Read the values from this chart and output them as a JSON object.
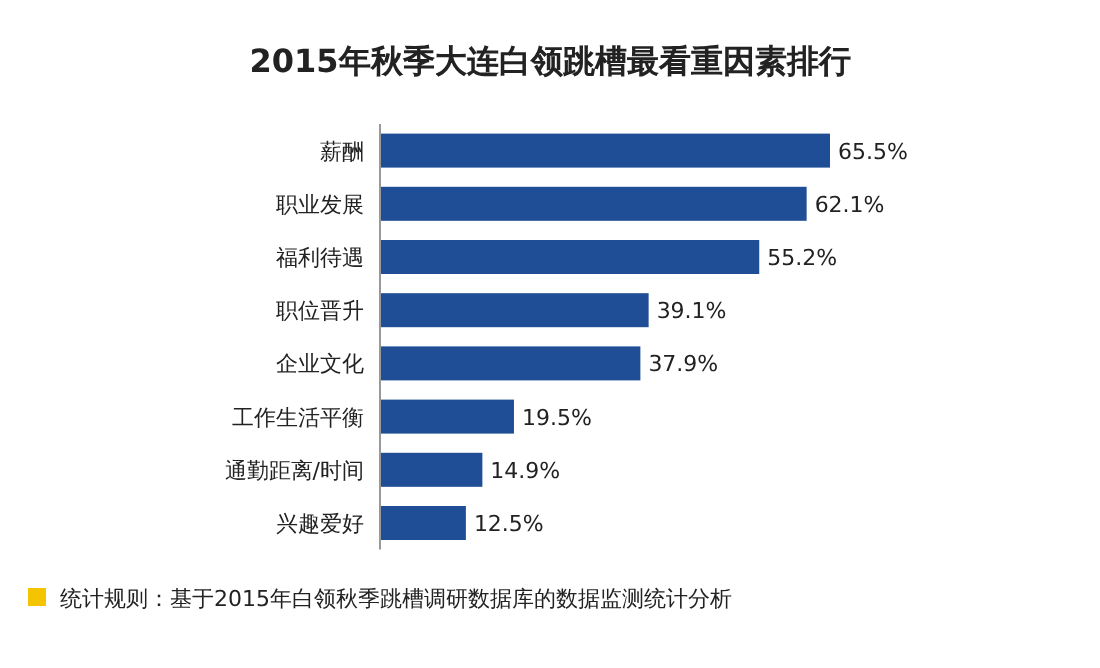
{
  "chart_data": {
    "type": "bar",
    "orientation": "horizontal",
    "title": "2015年秋季大连白领跳槽最看重因素排行",
    "categories": [
      "薪酬",
      "职业发展",
      "福利待遇",
      "职位晋升",
      "企业文化",
      "工作生活平衡",
      "通勤距离/时间",
      "兴趣爱好"
    ],
    "values": [
      65.5,
      62.1,
      55.2,
      39.1,
      37.9,
      19.5,
      14.9,
      12.5
    ],
    "value_labels": [
      "65.5%",
      "62.1%",
      "55.2%",
      "39.1%",
      "37.9%",
      "19.5%",
      "14.9%",
      "12.5%"
    ],
    "color": "#1f4e96",
    "annotations": [
      "统计规则：基于2015年白领秋季跳槽调研数据库的数据监测统计分析"
    ]
  }
}
